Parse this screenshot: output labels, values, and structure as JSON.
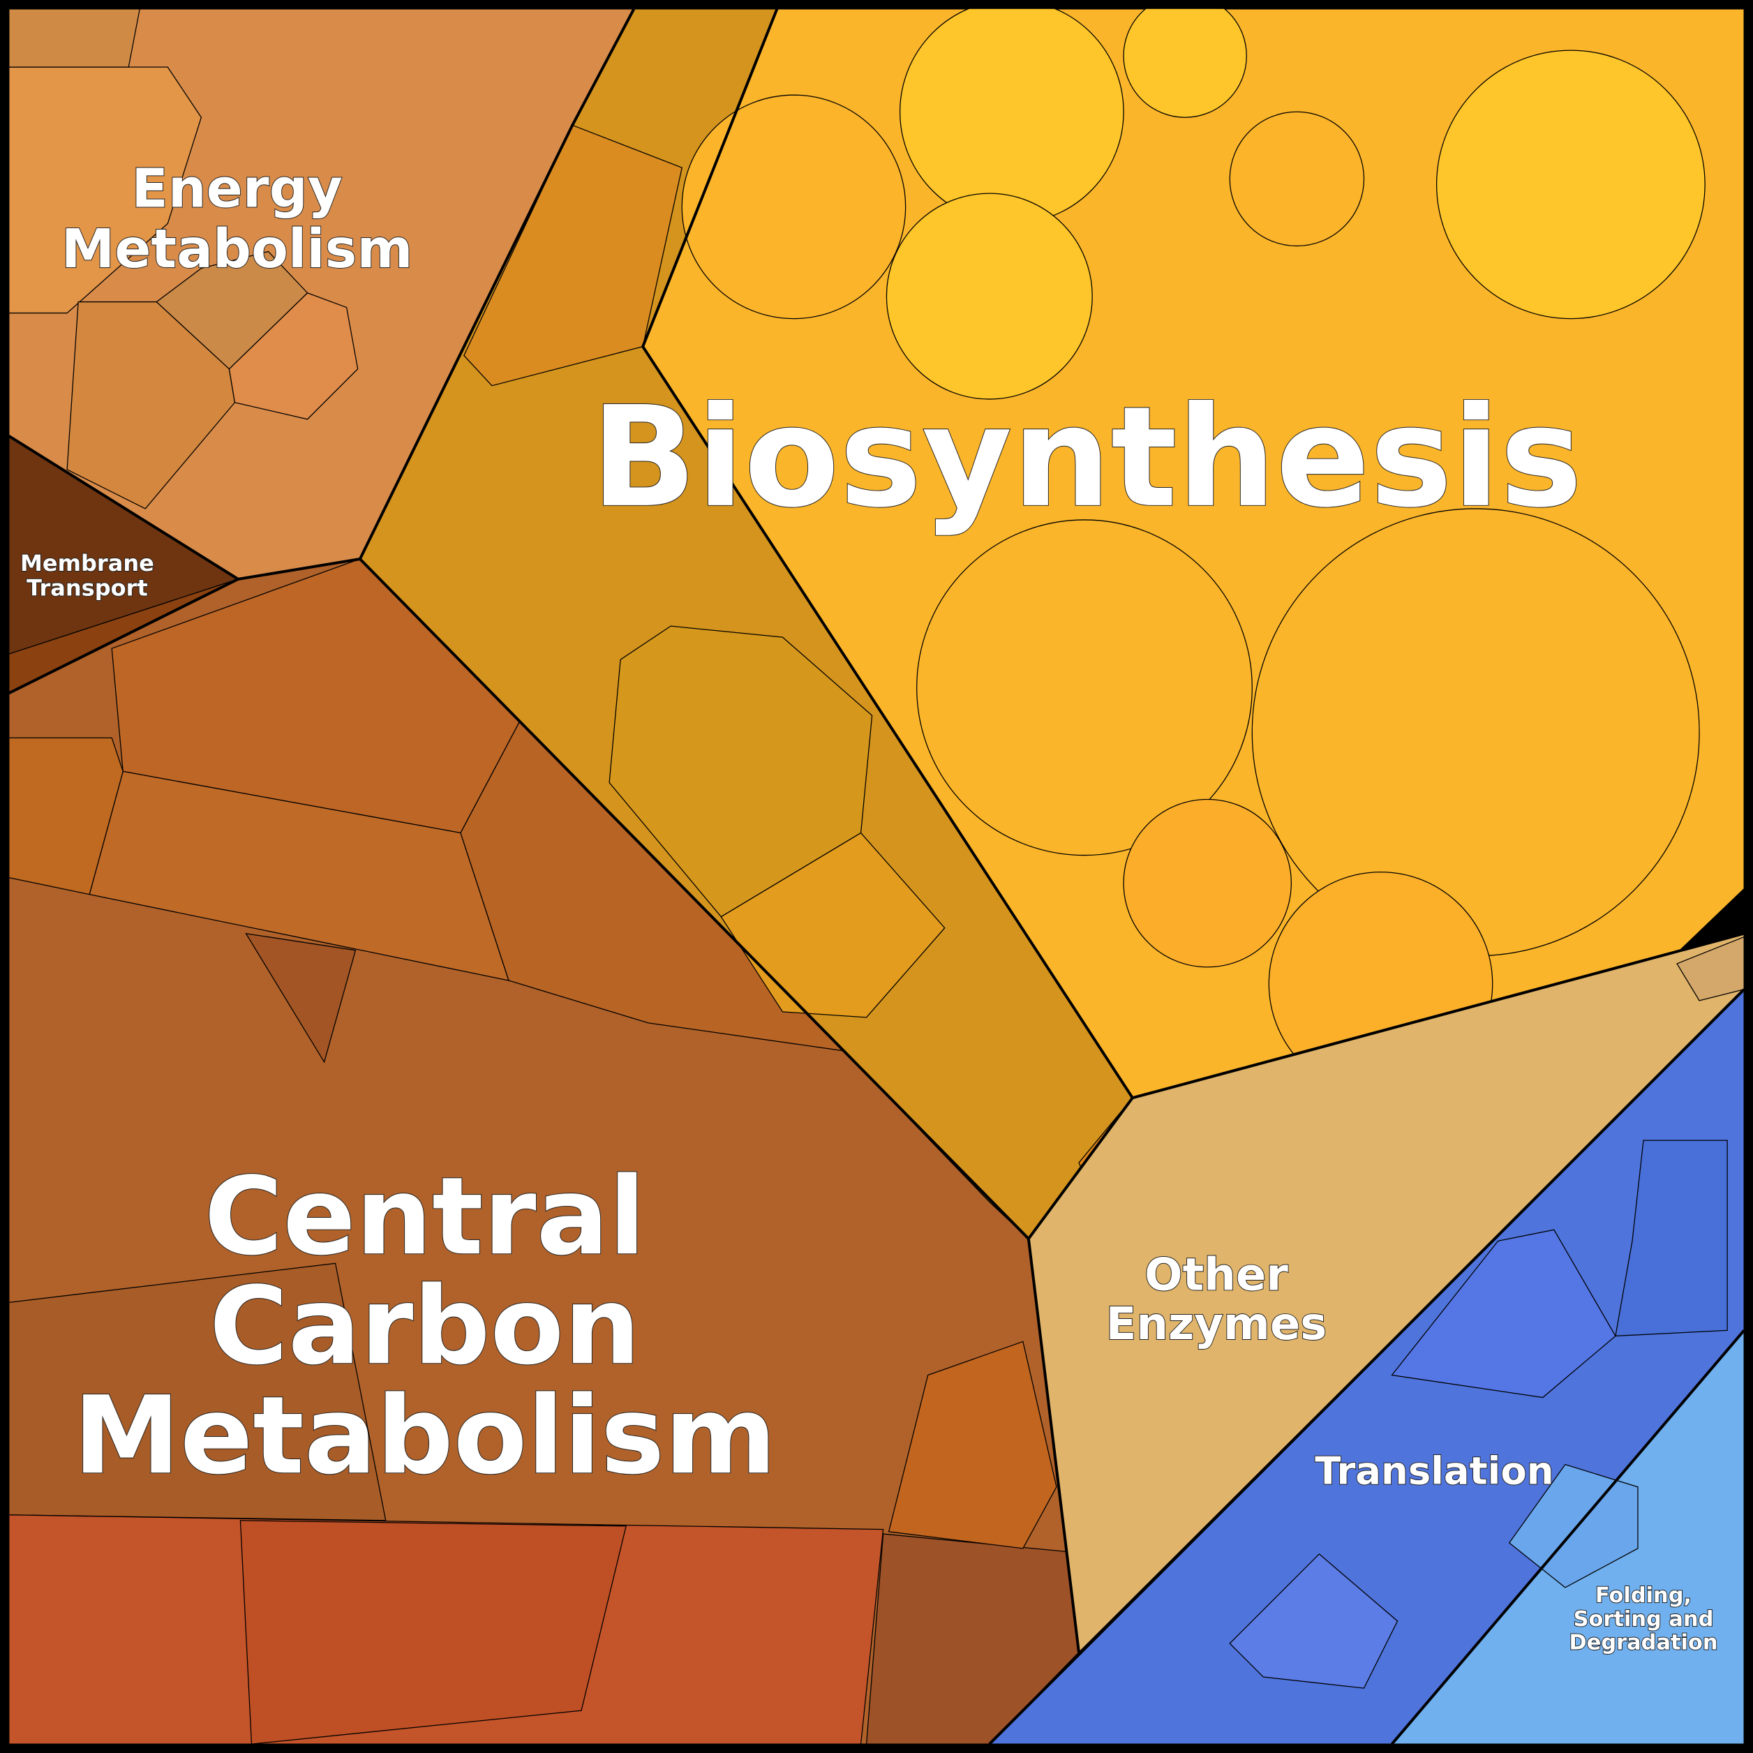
{
  "regions": [
    {
      "lines": [
        "Energy",
        "Metabolism"
      ]
    },
    {
      "lines": [
        "Membrane",
        "Transport"
      ]
    },
    {
      "lines": [
        "Biosynthesis"
      ]
    },
    {
      "lines": [
        "Central",
        "Carbon",
        "Metabolism"
      ]
    },
    {
      "lines": [
        "Other",
        "Enzymes"
      ]
    },
    {
      "lines": [
        "Translation"
      ]
    },
    {
      "lines": [
        "Folding,",
        "Sorting and",
        "Degradation"
      ]
    }
  ]
}
